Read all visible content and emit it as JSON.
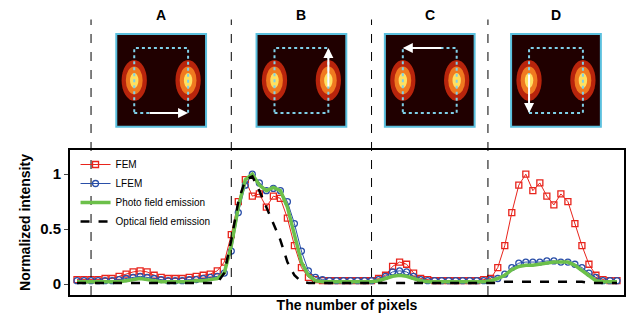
{
  "chart_data": {
    "type": "line",
    "x_label": "The number of pixels",
    "y_label": "Normalized intensity",
    "xlim": [
      -15,
      380
    ],
    "ylim": [
      -0.1,
      1.22
    ],
    "yticks": [
      0,
      0.5,
      1
    ],
    "tick_labels": "y",
    "grid": false,
    "legend": "top-left",
    "panels": [
      {
        "label": "A",
        "start": 0
      },
      {
        "label": "B",
        "start": 100
      },
      {
        "label": "C",
        "start": 200
      },
      {
        "label": "D",
        "start": 283
      }
    ],
    "x": [
      -10,
      -5,
      0,
      5,
      10,
      15,
      20,
      25,
      30,
      35,
      40,
      45,
      50,
      55,
      60,
      65,
      70,
      75,
      80,
      85,
      90,
      95,
      100,
      105,
      110,
      115,
      120,
      125,
      130,
      135,
      140,
      145,
      150,
      155,
      160,
      165,
      170,
      175,
      180,
      185,
      190,
      195,
      200,
      205,
      210,
      215,
      220,
      225,
      230,
      235,
      240,
      245,
      250,
      255,
      260,
      265,
      270,
      275,
      280,
      285,
      290,
      295,
      300,
      305,
      310,
      315,
      320,
      325,
      330,
      335,
      340,
      345,
      350,
      355,
      360,
      365,
      370,
      375
    ],
    "series": [
      {
        "name": "FEM",
        "color": "#e8241c",
        "marker": "square-open",
        "line_style": "solid",
        "values": [
          0.04,
          0.04,
          0.04,
          0.04,
          0.05,
          0.05,
          0.07,
          0.09,
          0.11,
          0.12,
          0.11,
          0.08,
          0.06,
          0.05,
          0.05,
          0.05,
          0.06,
          0.07,
          0.08,
          0.09,
          0.12,
          0.2,
          0.45,
          0.75,
          0.95,
          0.8,
          0.82,
          0.7,
          0.8,
          0.78,
          0.6,
          0.35,
          0.15,
          0.06,
          0.04,
          0.03,
          0.03,
          0.03,
          0.03,
          0.03,
          0.03,
          0.03,
          0.03,
          0.05,
          0.08,
          0.16,
          0.2,
          0.18,
          0.1,
          0.05,
          0.04,
          0.03,
          0.03,
          0.03,
          0.03,
          0.03,
          0.03,
          0.03,
          0.04,
          0.05,
          0.15,
          0.35,
          0.65,
          0.9,
          1.0,
          0.85,
          0.92,
          0.8,
          0.72,
          0.82,
          0.75,
          0.55,
          0.35,
          0.18,
          0.08,
          0.04,
          0.03,
          0.03
        ]
      },
      {
        "name": "LFEM",
        "color": "#2a4fa8",
        "marker": "circle-open",
        "line_style": "solid",
        "values": [
          0.03,
          0.03,
          0.03,
          0.03,
          0.03,
          0.03,
          0.04,
          0.05,
          0.06,
          0.07,
          0.06,
          0.05,
          0.04,
          0.03,
          0.03,
          0.03,
          0.04,
          0.04,
          0.05,
          0.06,
          0.07,
          0.1,
          0.3,
          0.65,
          0.9,
          1.0,
          0.92,
          0.85,
          0.87,
          0.85,
          0.75,
          0.55,
          0.3,
          0.12,
          0.06,
          0.04,
          0.03,
          0.03,
          0.03,
          0.03,
          0.03,
          0.03,
          0.03,
          0.04,
          0.07,
          0.11,
          0.12,
          0.11,
          0.07,
          0.04,
          0.03,
          0.03,
          0.03,
          0.03,
          0.03,
          0.03,
          0.03,
          0.03,
          0.03,
          0.04,
          0.05,
          0.09,
          0.15,
          0.19,
          0.2,
          0.2,
          0.2,
          0.21,
          0.21,
          0.2,
          0.2,
          0.18,
          0.15,
          0.1,
          0.06,
          0.03,
          0.03,
          0.03
        ]
      },
      {
        "name": "Photo field emission",
        "color": "#6cc04a",
        "marker": "none",
        "line_style": "solid",
        "values": [
          0.02,
          0.02,
          0.02,
          0.02,
          0.02,
          0.02,
          0.02,
          0.03,
          0.04,
          0.05,
          0.04,
          0.03,
          0.02,
          0.02,
          0.02,
          0.02,
          0.02,
          0.03,
          0.03,
          0.04,
          0.05,
          0.1,
          0.35,
          0.7,
          0.95,
          1.0,
          0.9,
          0.85,
          0.88,
          0.85,
          0.7,
          0.45,
          0.2,
          0.08,
          0.03,
          0.02,
          0.02,
          0.02,
          0.02,
          0.02,
          0.02,
          0.02,
          0.02,
          0.03,
          0.05,
          0.07,
          0.08,
          0.07,
          0.05,
          0.03,
          0.02,
          0.02,
          0.02,
          0.02,
          0.02,
          0.02,
          0.02,
          0.02,
          0.02,
          0.03,
          0.05,
          0.08,
          0.13,
          0.16,
          0.17,
          0.17,
          0.18,
          0.19,
          0.2,
          0.2,
          0.2,
          0.17,
          0.12,
          0.07,
          0.03,
          0.02,
          0.02,
          0.02
        ]
      },
      {
        "name": "Optical field emission",
        "color": "#000000",
        "marker": "none",
        "line_style": "dash",
        "values": [
          0.01,
          0.01,
          0.01,
          0.01,
          0.01,
          0.01,
          0.01,
          0.01,
          0.01,
          0.01,
          0.01,
          0.01,
          0.01,
          0.01,
          0.01,
          0.01,
          0.01,
          0.01,
          0.01,
          0.01,
          0.01,
          0.1,
          0.4,
          0.75,
          0.95,
          0.98,
          0.85,
          0.7,
          0.55,
          0.4,
          0.2,
          0.08,
          0.02,
          0.01,
          0.01,
          0.01,
          0.01,
          0.01,
          0.01,
          0.01,
          0.01,
          0.01,
          0.01,
          0.01,
          0.01,
          0.01,
          0.01,
          0.01,
          0.01,
          0.01,
          0.01,
          0.01,
          0.01,
          0.01,
          0.01,
          0.01,
          0.01,
          0.01,
          0.01,
          0.01,
          0.01,
          0.02,
          0.02,
          0.02,
          0.02,
          0.02,
          0.02,
          0.02,
          0.02,
          0.02,
          0.02,
          0.02,
          0.02,
          0.01,
          0.01,
          0.01,
          0.01,
          0.01
        ]
      }
    ]
  }
}
